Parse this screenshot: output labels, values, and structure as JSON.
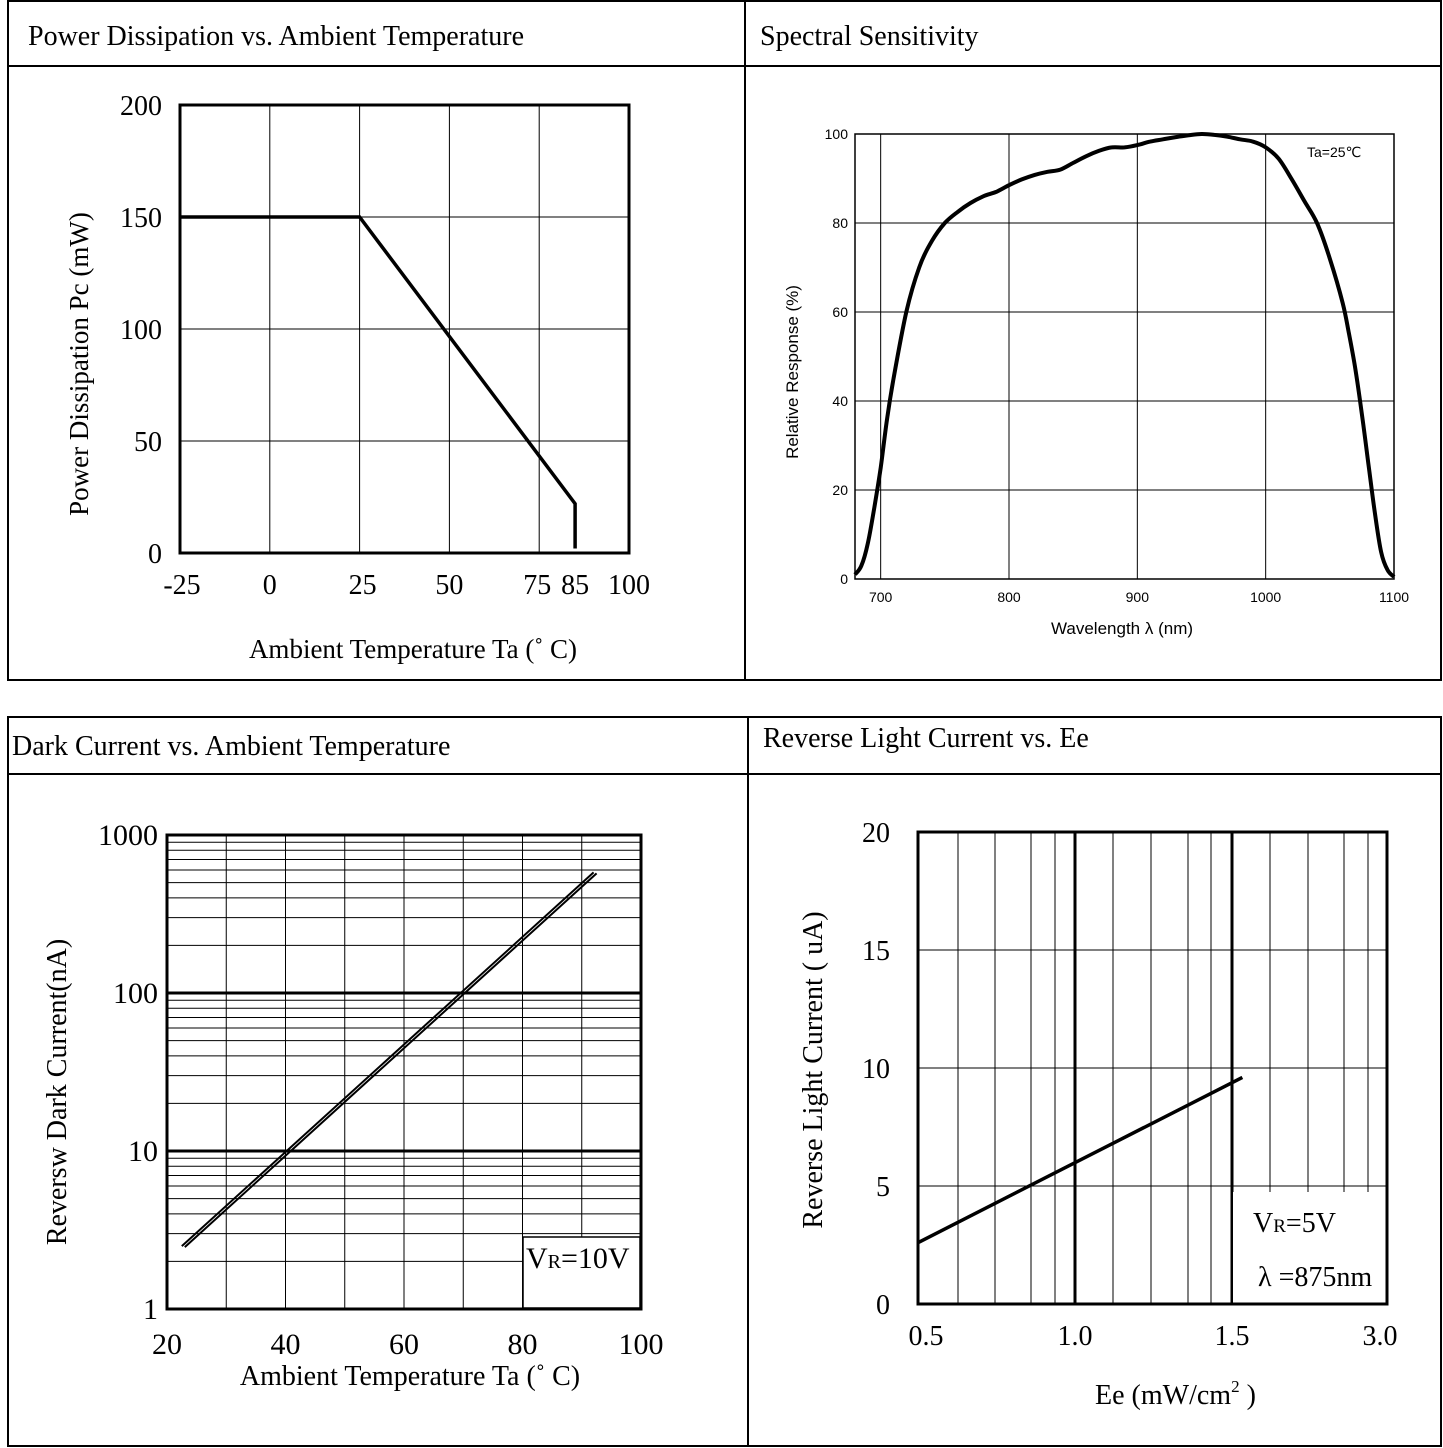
{
  "panels": [
    {
      "title": "Power Dissipation vs. Ambient Temperature"
    },
    {
      "title": "Spectral Sensitivity"
    },
    {
      "title": "Dark Current vs. Ambient Temperature"
    },
    {
      "title": "Reverse Light Current vs. Ee"
    }
  ],
  "chart_data": [
    {
      "type": "line",
      "title": "Power Dissipation vs. Ambient Temperature",
      "xlabel": "Ambient Temperature Ta (˚ C)",
      "ylabel": "Power Dissipation Pc (mW)",
      "xlim": [
        -25,
        100
      ],
      "ylim": [
        0,
        200
      ],
      "x_ticks": [
        -25,
        0,
        25,
        50,
        75,
        85,
        100
      ],
      "x_tick_labels": [
        "-25",
        "0",
        "25",
        "50",
        "75",
        "85",
        "100"
      ],
      "y_ticks": [
        0,
        50,
        100,
        150,
        200
      ],
      "y_tick_labels": [
        "0",
        "50",
        "100",
        "150",
        "200"
      ],
      "grid": true,
      "series": [
        {
          "x": [
            -25,
            25,
            85,
            85
          ],
          "y": [
            150,
            150,
            22,
            2
          ]
        }
      ]
    },
    {
      "type": "line",
      "title": "Spectral Sensitivity",
      "xlabel": "Wavelength  λ (nm)",
      "ylabel": "Relative Response (%)",
      "xlim": [
        680,
        1100
      ],
      "ylim": [
        0,
        100
      ],
      "x_ticks": [
        700,
        800,
        900,
        1000,
        1100
      ],
      "x_tick_labels": [
        "700",
        "800",
        "900",
        "1000",
        "1100"
      ],
      "y_ticks": [
        0,
        20,
        40,
        60,
        80,
        100
      ],
      "y_tick_labels": [
        "0",
        "20",
        "40",
        "60",
        "80",
        "100"
      ],
      "grid": true,
      "annotation": "Ta=25℃",
      "series": [
        {
          "x": [
            680,
            685,
            690,
            695,
            700,
            705,
            710,
            720,
            730,
            740,
            750,
            760,
            770,
            780,
            790,
            800,
            810,
            820,
            830,
            840,
            850,
            860,
            870,
            880,
            890,
            900,
            910,
            920,
            930,
            940,
            950,
            960,
            970,
            980,
            990,
            1000,
            1010,
            1020,
            1030,
            1040,
            1050,
            1060,
            1065,
            1070,
            1075,
            1080,
            1085,
            1090,
            1095,
            1100
          ],
          "y": [
            1,
            3,
            8,
            16,
            25,
            36,
            45,
            60,
            70,
            76,
            80,
            82.5,
            84.5,
            86,
            87,
            88.5,
            89.8,
            90.8,
            91.5,
            92,
            93.5,
            95,
            96.2,
            97,
            97,
            97.5,
            98.3,
            98.8,
            99.3,
            99.7,
            100,
            99.8,
            99.4,
            98.8,
            98.3,
            97,
            94.5,
            90,
            85,
            80,
            72,
            62,
            55,
            47,
            37,
            26,
            15,
            6,
            2,
            0.5
          ]
        }
      ]
    },
    {
      "type": "line",
      "title": "Dark Current vs. Ambient Temperature",
      "xlabel": "Ambient Temperature Ta (˚ C)",
      "ylabel": "Reversw Dark Current(nA)",
      "xlim": [
        20,
        100
      ],
      "ylim": [
        1,
        1000
      ],
      "yscale": "log",
      "x_ticks": [
        20,
        40,
        60,
        80,
        100
      ],
      "x_tick_labels": [
        "20",
        "40",
        "60",
        "80",
        "100"
      ],
      "y_ticks": [
        1,
        10,
        100,
        1000
      ],
      "y_tick_labels": [
        "1",
        "10",
        "100",
        "1000"
      ],
      "grid": true,
      "annotation": {
        "main": "V",
        "sub": "R",
        "rest": "=10V"
      },
      "series": [
        {
          "x": [
            22.5,
            92
          ],
          "y": [
            2.5,
            580
          ]
        }
      ]
    },
    {
      "type": "line",
      "title": "Reverse Light Current vs. Ee",
      "xlabel": {
        "main": "Ee  (mW/cm",
        "sup": "2",
        "rest": "  )"
      },
      "ylabel": "Reverse Light Current ( uA)",
      "x_ticks": [
        0.5,
        1.0,
        1.5,
        3.0
      ],
      "x_tick_labels": [
        "0.5",
        "1.0",
        "1.5",
        "3.0"
      ],
      "ylim": [
        0,
        20
      ],
      "y_ticks": [
        0,
        5,
        10,
        15,
        20
      ],
      "y_tick_labels": [
        "0",
        "5",
        "10",
        "15",
        "20"
      ],
      "grid": true,
      "annotations": [
        {
          "main": "V",
          "sub": "R",
          "rest": "=5V"
        },
        {
          "main": "λ =875nm"
        }
      ],
      "series": [
        {
          "x": [
            0.5,
            1.6
          ],
          "y": [
            2.6,
            9.6
          ]
        }
      ]
    }
  ]
}
